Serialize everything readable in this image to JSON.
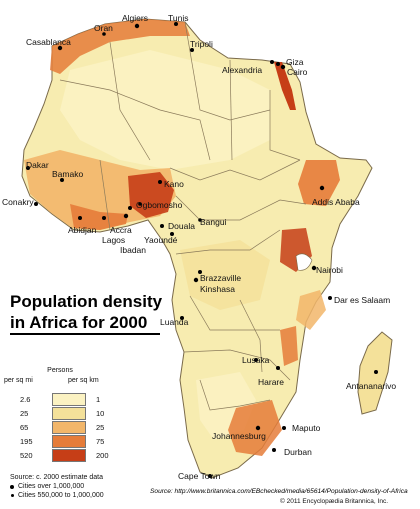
{
  "title": {
    "line1": "Population density",
    "line2": "in Africa for 2000"
  },
  "legend": {
    "title": "Persons",
    "unit_left": "per sq mi",
    "unit_right": "per sq km",
    "rows": [
      {
        "per_sq_mi": "2.6",
        "per_sq_km": "1",
        "color": "#fbf2c2"
      },
      {
        "per_sq_mi": "25",
        "per_sq_km": "10",
        "color": "#f4e19a"
      },
      {
        "per_sq_mi": "65",
        "per_sq_km": "25",
        "color": "#f2b66a"
      },
      {
        "per_sq_mi": "195",
        "per_sq_km": "75",
        "color": "#e57c3a"
      },
      {
        "per_sq_mi": "520",
        "per_sq_km": "200",
        "color": "#c63e17"
      }
    ]
  },
  "notes": {
    "source": "Source:  c. 2000 estimate data",
    "cities_large": "Cities over 1,000,000",
    "cities_medium": "Cities 550,000 to 1,000,000"
  },
  "source_web": "Source: http://www.britannica.com/EBchecked/media/65614/Population-density-of-Africa",
  "copyright": "© 2011 Encyclopædia Britannica, Inc.",
  "cities": [
    {
      "name": "Algiers",
      "key": "algiers"
    },
    {
      "name": "Tunis",
      "key": "tunis"
    },
    {
      "name": "Oran",
      "key": "oran"
    },
    {
      "name": "Casablanca",
      "key": "casablanca"
    },
    {
      "name": "Tripoli",
      "key": "tripoli"
    },
    {
      "name": "Alexandria",
      "key": "alexandria"
    },
    {
      "name": "Giza",
      "key": "giza"
    },
    {
      "name": "Cairo",
      "key": "cairo"
    },
    {
      "name": "Dakar",
      "key": "dakar"
    },
    {
      "name": "Bamako",
      "key": "bamako"
    },
    {
      "name": "Conakry",
      "key": "conakry"
    },
    {
      "name": "Abidjan",
      "key": "abidjan"
    },
    {
      "name": "Accra",
      "key": "accra"
    },
    {
      "name": "Lagos",
      "key": "lagos"
    },
    {
      "name": "Ibadan",
      "key": "ibadan"
    },
    {
      "name": "Kano",
      "key": "kano"
    },
    {
      "name": "Ogbomosho",
      "key": "ogbomosho"
    },
    {
      "name": "Douala",
      "key": "douala"
    },
    {
      "name": "Yaoundé",
      "key": "yaounde"
    },
    {
      "name": "Bangui",
      "key": "bangui"
    },
    {
      "name": "Addis Ababa",
      "key": "addis"
    },
    {
      "name": "Nairobi",
      "key": "nairobi"
    },
    {
      "name": "Dar es Salaam",
      "key": "dar"
    },
    {
      "name": "Brazzaville",
      "key": "brazzaville"
    },
    {
      "name": "Kinshasa",
      "key": "kinshasa"
    },
    {
      "name": "Luanda",
      "key": "luanda"
    },
    {
      "name": "Lusaka",
      "key": "lusaka"
    },
    {
      "name": "Harare",
      "key": "harare"
    },
    {
      "name": "Antananarivo",
      "key": "antananarivo"
    },
    {
      "name": "Maputo",
      "key": "maputo"
    },
    {
      "name": "Johannesburg",
      "key": "johannesburg"
    },
    {
      "name": "Durban",
      "key": "durban"
    },
    {
      "name": "Cape Town",
      "key": "capetown"
    }
  ]
}
